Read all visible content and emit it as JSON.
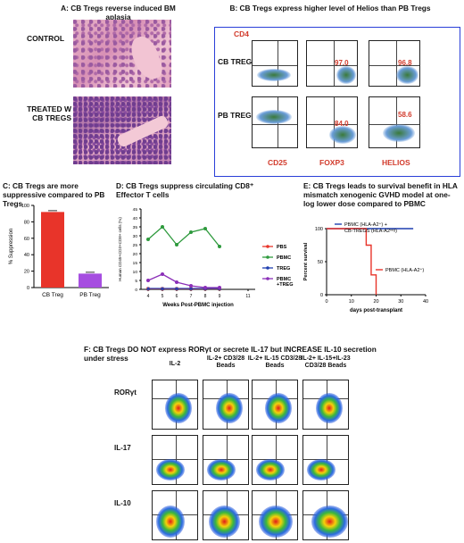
{
  "panelA": {
    "title": "A: CB Tregs reverse induced BM aplasia",
    "control_label": "CONTROL",
    "treated_label": "TREATED W CB TREGS"
  },
  "panelB": {
    "title": "B: CB Tregs express higher level of Helios than PB Tregs",
    "yaxis": "CD4",
    "row1": "CB TREGS",
    "row2": "PB TREGS",
    "col1": "CD25",
    "col2": "FOXP3",
    "col3": "HELIOS",
    "cb_foxp3": "97.0",
    "cb_helios": "96.8",
    "pb_foxp3": "84.0",
    "pb_helios": "58.6"
  },
  "panelC": {
    "title": "C: CB Tregs are more suppressive compared to PB Tregs",
    "chart_data": {
      "type": "bar",
      "categories": [
        "CB Treg",
        "PB Treg"
      ],
      "values": [
        92,
        17
      ],
      "ylabel": "% Suppression",
      "ylim": [
        0,
        100
      ],
      "yticks": [
        "0",
        "20",
        "40",
        "60",
        "80",
        "100"
      ],
      "colors": [
        "#e8342a",
        "#a64ee0"
      ]
    }
  },
  "panelD": {
    "title": "D: CB Tregs suppress circulating CD8⁺ Effector T cells",
    "chart_data": {
      "type": "line",
      "xlabel": "Weeks Post-PBMC injection",
      "ylabel": "Human CD45+CD3+CD8+ cells (%)",
      "ylim": [
        0,
        45
      ],
      "yticks": [
        "0",
        "5",
        "10",
        "15",
        "20",
        "25",
        "30",
        "35",
        "40",
        "45"
      ],
      "xticks": [
        "4",
        "5",
        "6",
        "7",
        "8",
        "9",
        "11"
      ],
      "series": [
        {
          "name": "PBS",
          "color": "#e8342a",
          "x": [
            4,
            5,
            6,
            7,
            8,
            9
          ],
          "values": [
            0.3,
            0.3,
            0.3,
            0.3,
            0.3,
            0.3
          ]
        },
        {
          "name": "PBMC",
          "color": "#2e9a3d",
          "x": [
            4,
            5,
            6,
            7,
            8,
            9
          ],
          "values": [
            28,
            35,
            25,
            32,
            34,
            24
          ]
        },
        {
          "name": "TREG",
          "color": "#1f3fb0",
          "x": [
            4,
            5,
            6,
            7,
            8,
            9
          ],
          "values": [
            0.5,
            0.5,
            0.5,
            0.5,
            0.5,
            0.5
          ]
        },
        {
          "name": "PBMC +TREG",
          "color": "#8b2fb8",
          "x": [
            4,
            5,
            6,
            7,
            8,
            9
          ],
          "values": [
            5,
            8.5,
            4,
            2,
            1,
            1
          ]
        }
      ]
    }
  },
  "panelE": {
    "title": "E: CB Tregs leads to survival benefit in HLA mismatch xenogenic GVHD model at one-log lower dose compared to PBMC",
    "chart_data": {
      "type": "line",
      "xlabel": "days post-transplant",
      "ylabel": "Percent survival",
      "xlim": [
        0,
        40
      ],
      "ylim": [
        0,
        100
      ],
      "xticks": [
        "0",
        "10",
        "20",
        "30",
        "40"
      ],
      "yticks": [
        "0",
        "50",
        "100"
      ],
      "series": [
        {
          "name": "PBMC (HLA-A2⁺) + CB-TREGS (HLA-A2ⁿᵉᵍ)",
          "color": "#1f3fb0",
          "x": [
            0,
            35
          ],
          "values": [
            100,
            100
          ]
        },
        {
          "name": "PBMC (HLA-A2⁺)",
          "color": "#e8342a",
          "x": [
            0,
            16,
            16,
            18,
            18,
            20,
            20
          ],
          "values": [
            100,
            100,
            75,
            75,
            30,
            30,
            0
          ]
        }
      ]
    }
  },
  "panelF": {
    "title": "F: CB Tregs DO NOT express RORγt or secrete IL-17 but INCREASE IL-10 secretion under stress",
    "columns": [
      "IL-2",
      "IL-2+ CD3/28 Beads",
      "IL-2+ IL-15 CD3/28 Beads",
      "IL-2+ IL-15+IL-23 CD3/28 Beads"
    ],
    "rows": [
      "RORγt",
      "IL-17",
      "IL-10"
    ]
  }
}
